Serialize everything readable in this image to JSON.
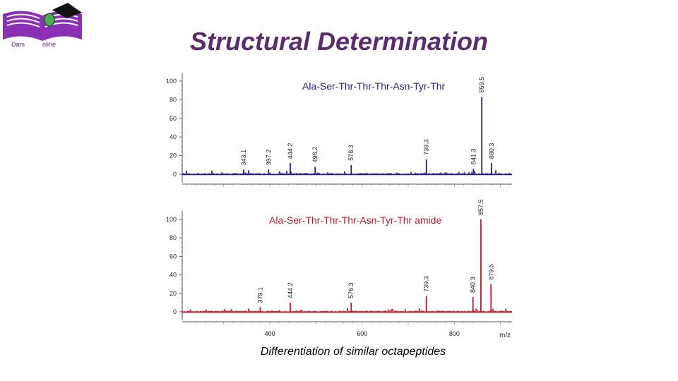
{
  "logo": {
    "text_left": "Dars",
    "text_right": "nline",
    "colors": {
      "book": "#8b2fb5",
      "cap": "#111111",
      "mouse": "#4caf50"
    }
  },
  "title": "Structural Determination",
  "caption": "Differentiation of similar octapeptides",
  "colors": {
    "top_series": "#2a1e7a",
    "bottom_series": "#c0182d",
    "title": "#5b2d6e"
  },
  "chart_data": [
    {
      "type": "line",
      "panel": "top",
      "series_label": "Ala-Ser-Thr-Thr-Thr-Asn-Tyr-Thr",
      "color": "#2a1e7a",
      "ylim": [
        0,
        100
      ],
      "xlim": [
        210,
        925
      ],
      "yticks": [
        "0",
        "20",
        "40",
        "60",
        "80",
        "100"
      ],
      "peaks": [
        {
          "mz": 343.1,
          "label": "343.1",
          "intensity": 5
        },
        {
          "mz": 397.2,
          "label": "397.2",
          "intensity": 5
        },
        {
          "mz": 444.2,
          "label": "444.2",
          "intensity": 12
        },
        {
          "mz": 498.2,
          "label": "498.2",
          "intensity": 8
        },
        {
          "mz": 576.3,
          "label": "576.3",
          "intensity": 10
        },
        {
          "mz": 739.3,
          "label": "739.3",
          "intensity": 16
        },
        {
          "mz": 841.3,
          "label": "841.3",
          "intensity": 6
        },
        {
          "mz": 859.5,
          "label": "859.5",
          "intensity": 83
        },
        {
          "mz": 880.3,
          "label": "880.3",
          "intensity": 12
        }
      ]
    },
    {
      "type": "line",
      "panel": "bottom",
      "series_label": "Ala-Ser-Thr-Thr-Thr-Asn-Tyr-Thr amide",
      "color": "#c0182d",
      "ylim": [
        0,
        100
      ],
      "xlim": [
        210,
        925
      ],
      "yticks": [
        "0",
        "20",
        "40",
        "60",
        "80",
        "100"
      ],
      "xticks": [
        "400",
        "600",
        "800"
      ],
      "xlabel": "m/z",
      "peaks": [
        {
          "mz": 379.1,
          "label": "379.1",
          "intensity": 5
        },
        {
          "mz": 444.2,
          "label": "444.2",
          "intensity": 10
        },
        {
          "mz": 576.3,
          "label": "576.3",
          "intensity": 10
        },
        {
          "mz": 739.3,
          "label": "739.3",
          "intensity": 17
        },
        {
          "mz": 840.3,
          "label": "840.3",
          "intensity": 16
        },
        {
          "mz": 857.5,
          "label": "857.5",
          "intensity": 100
        },
        {
          "mz": 879.5,
          "label": "879.5",
          "intensity": 30
        }
      ]
    }
  ]
}
